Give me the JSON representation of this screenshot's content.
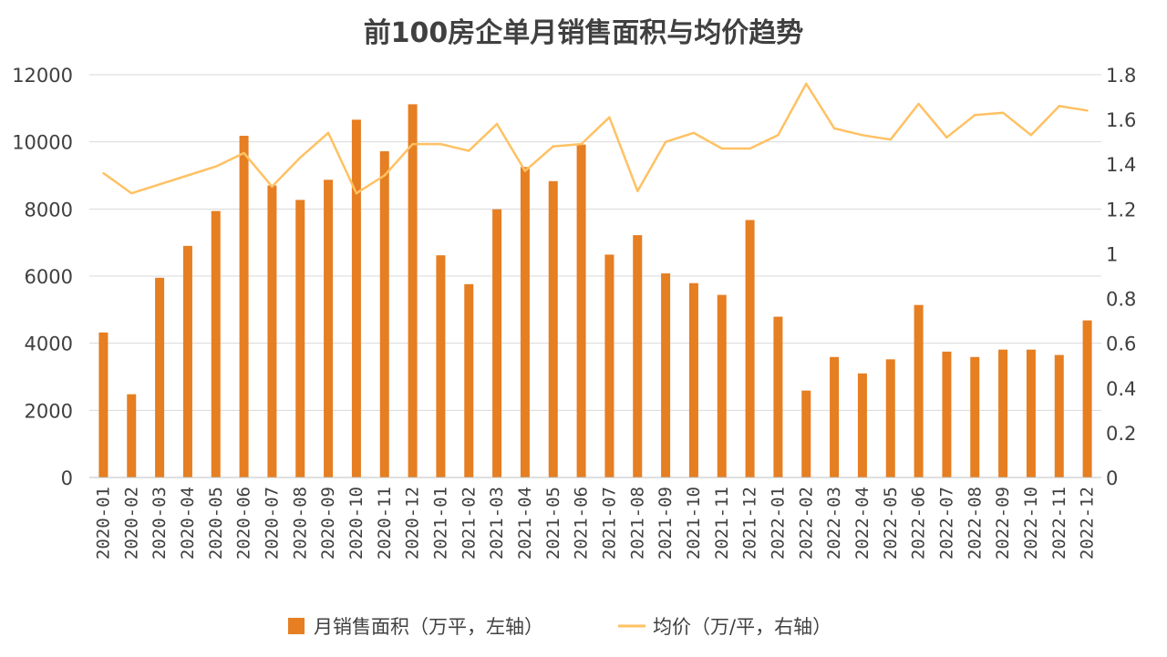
{
  "chart_data": {
    "type": "bar+line",
    "title": "前100房企单月销售面积与均价趋势",
    "categories": [
      "2020-01",
      "2020-02",
      "2020-03",
      "2020-04",
      "2020-05",
      "2020-06",
      "2020-07",
      "2020-08",
      "2020-09",
      "2020-10",
      "2020-11",
      "2020-12",
      "2021-01",
      "2021-02",
      "2021-03",
      "2021-04",
      "2021-05",
      "2021-06",
      "2021-07",
      "2021-08",
      "2021-09",
      "2021-10",
      "2021-11",
      "2021-12",
      "2022-01",
      "2022-02",
      "2022-03",
      "2022-04",
      "2022-05",
      "2022-06",
      "2022-07",
      "2022-08",
      "2022-09",
      "2022-10",
      "2022-11",
      "2022-12"
    ],
    "series": [
      {
        "name": "月销售面积（万平，左轴）",
        "type": "bar",
        "axis": "left",
        "color": "#e67e22",
        "values": [
          4320,
          2480,
          5950,
          6900,
          7940,
          10180,
          8700,
          8270,
          8870,
          10660,
          9720,
          11120,
          6620,
          5760,
          7990,
          9250,
          8830,
          9920,
          6640,
          7220,
          6080,
          5790,
          5440,
          7670,
          4790,
          2590,
          3590,
          3100,
          3520,
          5140,
          3750,
          3590,
          3810,
          3810,
          3650,
          4680
        ]
      },
      {
        "name": "均价（万/平，右轴）",
        "type": "line",
        "axis": "right",
        "color": "#ffc163",
        "values": [
          1.36,
          1.27,
          1.31,
          1.35,
          1.39,
          1.45,
          1.3,
          1.43,
          1.54,
          1.27,
          1.35,
          1.49,
          1.49,
          1.46,
          1.58,
          1.37,
          1.48,
          1.49,
          1.61,
          1.28,
          1.5,
          1.54,
          1.47,
          1.47,
          1.53,
          1.76,
          1.56,
          1.53,
          1.51,
          1.67,
          1.52,
          1.62,
          1.63,
          1.53,
          1.66,
          1.64
        ]
      }
    ],
    "y_left": {
      "min": 0,
      "max": 12000,
      "ticks": [
        "0",
        "2000",
        "4000",
        "6000",
        "8000",
        "10000",
        "12000"
      ]
    },
    "y_right": {
      "min": 0,
      "max": 1.8,
      "ticks": [
        "0",
        "0.2",
        "0.4",
        "0.6",
        "0.8",
        "1",
        "1.2",
        "1.4",
        "1.6",
        "1.8"
      ]
    },
    "grid": true,
    "legend_position": "bottom"
  }
}
